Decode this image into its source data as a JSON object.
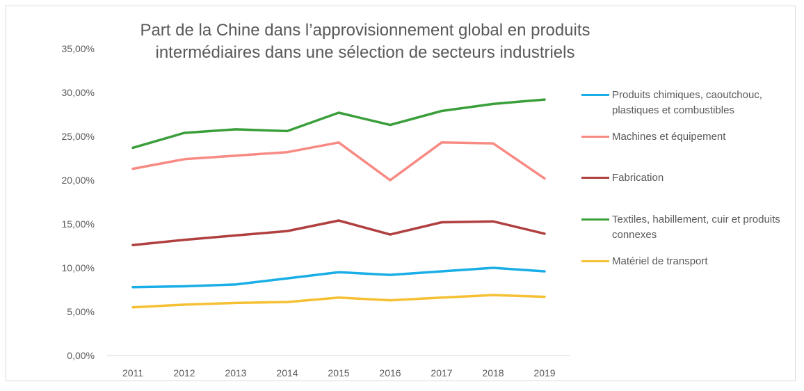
{
  "chart_data": {
    "type": "line",
    "title_line1": "Part de la Chine dans l’approvisionnement global en produits",
    "title_line2": "intermédiaires dans une sélection de secteurs industriels",
    "xlabel": "",
    "ylabel": "",
    "categories": [
      "2011",
      "2012",
      "2013",
      "2014",
      "2015",
      "2016",
      "2017",
      "2018",
      "2019"
    ],
    "ylim": [
      0,
      35
    ],
    "yticks": [
      0,
      5,
      10,
      15,
      20,
      25,
      30,
      35
    ],
    "ytick_labels": [
      "0,00%",
      "5,00%",
      "10,00%",
      "15,00%",
      "20,00%",
      "25,00%",
      "30,00%",
      "35,00%"
    ],
    "grid": false,
    "legend_position": "right",
    "series": [
      {
        "key": "chimie",
        "name": "Produits chimiques, caoutchouc, plastiques et combustibles",
        "color": "#1aaee6",
        "values": [
          7.8,
          7.9,
          8.1,
          8.8,
          9.5,
          9.2,
          9.6,
          10.0,
          9.6
        ]
      },
      {
        "key": "machines",
        "name": "Machines et équipement",
        "color": "#f88a84",
        "values": [
          21.3,
          22.4,
          22.8,
          23.2,
          24.3,
          20.0,
          24.3,
          24.2,
          20.2
        ]
      },
      {
        "key": "fabrication",
        "name": "Fabrication",
        "color": "#b0403f",
        "values": [
          12.6,
          13.2,
          13.7,
          14.2,
          15.4,
          13.8,
          15.2,
          15.3,
          13.9
        ]
      },
      {
        "key": "textiles",
        "name": "Textiles, habillement, cuir et produits connexes",
        "color": "#3a9f3a",
        "values": [
          23.7,
          25.4,
          25.8,
          25.6,
          27.7,
          26.3,
          27.9,
          28.7,
          29.2
        ]
      },
      {
        "key": "transport",
        "name": "Matériel de transport",
        "color": "#f5c034",
        "values": [
          5.5,
          5.8,
          6.0,
          6.1,
          6.6,
          6.3,
          6.6,
          6.9,
          6.7
        ]
      }
    ]
  }
}
